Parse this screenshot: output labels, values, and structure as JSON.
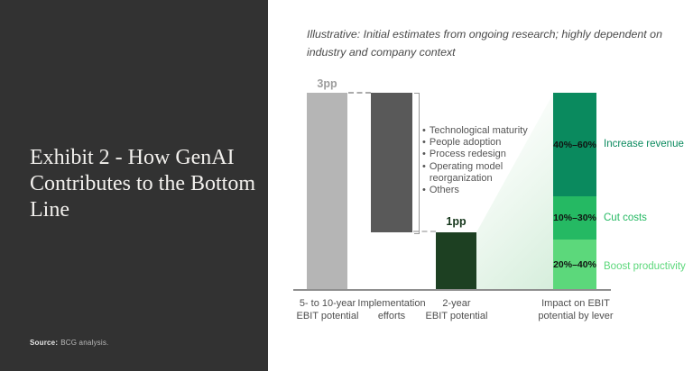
{
  "left_panel": {
    "title": "Exhibit 2 - How GenAI Contributes to the Bottom Line",
    "source_label": "Source:",
    "source_text": "BCG analysis.",
    "bg_color": "#323232"
  },
  "note": "Illustrative: Initial estimates from ongoing research; highly dependent on industry and company context",
  "chart_data": {
    "type": "bar",
    "subtype": "waterfall-with-stacked-breakdown",
    "title": "Exhibit 2 - How GenAI Contributes to the Bottom Line",
    "annotation_note": "Illustrative: Initial estimates from ongoing research; highly dependent on industry and company context",
    "categories": [
      "5- to 10-year EBIT potential",
      "Implementation efforts",
      "2-year EBIT potential",
      "Impact on EBIT potential by lever"
    ],
    "values_pp": [
      3,
      null,
      1,
      null
    ],
    "annotations": {
      "bar1": "3pp",
      "bar3": "1pp"
    },
    "implementation_factors": [
      "Technological maturity",
      "People adoption",
      "Process redesign",
      "Operating model reorganization",
      "Others"
    ],
    "levers": [
      {
        "range": "40%–60%",
        "label": "Increase revenue",
        "color": "#0a8a5e"
      },
      {
        "range": "10%–30%",
        "label": "Cut costs",
        "color": "#25b963"
      },
      {
        "range": "20%–40%",
        "label": "Boost productivity",
        "color": "#5cd87b"
      }
    ],
    "x_labels": [
      {
        "line1": "5- to 10-year",
        "line2": "EBIT potential"
      },
      {
        "line1": "Implementation",
        "line2": "efforts"
      },
      {
        "line1": "2-year",
        "line2": "EBIT potential"
      },
      {
        "line1": "Impact on EBIT",
        "line2": "potential by lever"
      }
    ],
    "bar_colors": {
      "five_to_ten_year": "#b5b5b5",
      "implementation_efforts": "#595959",
      "two_year": "#1d4022",
      "fan_gradient_end": "#d6eedc"
    },
    "legend_position": "right-of-stacked-bar",
    "grid": false
  }
}
